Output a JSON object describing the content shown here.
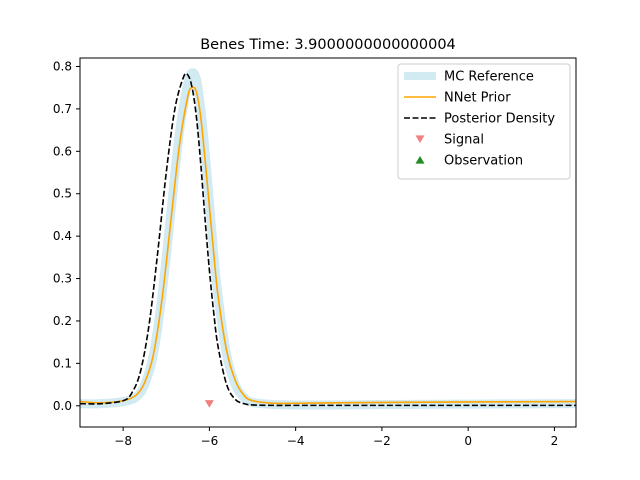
{
  "chart_data": {
    "type": "line",
    "title": "Benes Time: 3.9000000000000004",
    "xlabel": "",
    "ylabel": "",
    "xlim": [
      -9,
      2.5
    ],
    "ylim": [
      -0.05,
      0.82
    ],
    "xticks": [
      -8,
      -6,
      -4,
      -2,
      0,
      2
    ],
    "xtick_labels": [
      "−8",
      "−6",
      "−4",
      "−2",
      "0",
      "2"
    ],
    "yticks": [
      0.0,
      0.1,
      0.2,
      0.3,
      0.4,
      0.5,
      0.6,
      0.7,
      0.8
    ],
    "ytick_labels": [
      "0.0",
      "0.1",
      "0.2",
      "0.3",
      "0.4",
      "0.5",
      "0.6",
      "0.7",
      "0.8"
    ],
    "grid": false,
    "legend_position": "top-right",
    "series": [
      {
        "name": "MC Reference",
        "style": "band",
        "color": "#add8e6",
        "x": [
          -9.0,
          -8.5,
          -8.0,
          -7.7,
          -7.5,
          -7.3,
          -7.1,
          -6.9,
          -6.7,
          -6.5,
          -6.4,
          -6.3,
          -6.2,
          -6.1,
          -6.0,
          -5.9,
          -5.8,
          -5.6,
          -5.4,
          -5.2,
          -5.0,
          -4.5,
          -4.0,
          -3.0,
          -2.0,
          0.0,
          2.5
        ],
        "values": [
          0.005,
          0.005,
          0.01,
          0.02,
          0.05,
          0.12,
          0.26,
          0.45,
          0.64,
          0.76,
          0.785,
          0.77,
          0.7,
          0.6,
          0.48,
          0.36,
          0.26,
          0.12,
          0.05,
          0.02,
          0.008,
          0.003,
          0.002,
          0.002,
          0.003,
          0.004,
          0.005
        ]
      },
      {
        "name": "NNet Prior",
        "style": "solid",
        "color": "#ffa500",
        "x": [
          -9.0,
          -8.5,
          -8.0,
          -7.7,
          -7.5,
          -7.3,
          -7.1,
          -6.9,
          -6.7,
          -6.5,
          -6.4,
          -6.3,
          -6.2,
          -6.1,
          -6.0,
          -5.9,
          -5.8,
          -5.6,
          -5.4,
          -5.2,
          -5.0,
          -4.5,
          -4.0,
          -3.0,
          -2.0,
          0.0,
          2.5
        ],
        "values": [
          0.01,
          0.007,
          0.012,
          0.025,
          0.055,
          0.12,
          0.25,
          0.43,
          0.61,
          0.73,
          0.75,
          0.74,
          0.68,
          0.58,
          0.47,
          0.36,
          0.26,
          0.13,
          0.06,
          0.025,
          0.012,
          0.006,
          0.006,
          0.007,
          0.008,
          0.009,
          0.01
        ]
      },
      {
        "name": "Posterior Density",
        "style": "dashed",
        "color": "#000000",
        "x": [
          -9.0,
          -8.5,
          -8.0,
          -7.8,
          -7.6,
          -7.4,
          -7.2,
          -7.0,
          -6.8,
          -6.6,
          -6.5,
          -6.4,
          -6.3,
          -6.2,
          -6.1,
          -6.0,
          -5.9,
          -5.8,
          -5.6,
          -5.4,
          -5.2,
          -5.0,
          -4.5,
          -4.0,
          -3.0,
          -2.0,
          0.0,
          2.5
        ],
        "values": [
          0.005,
          0.005,
          0.012,
          0.03,
          0.08,
          0.19,
          0.36,
          0.55,
          0.7,
          0.775,
          0.78,
          0.75,
          0.68,
          0.57,
          0.44,
          0.32,
          0.22,
          0.14,
          0.05,
          0.015,
          0.005,
          0.002,
          0.001,
          0.001,
          0.001,
          0.001,
          0.001,
          0.001
        ]
      },
      {
        "name": "Signal",
        "style": "marker-down",
        "color": "#f08080",
        "x": [
          -6.0
        ],
        "values": [
          0.005
        ]
      },
      {
        "name": "Observation",
        "style": "marker-up",
        "color": "#228b22",
        "x": [],
        "values": []
      }
    ]
  }
}
